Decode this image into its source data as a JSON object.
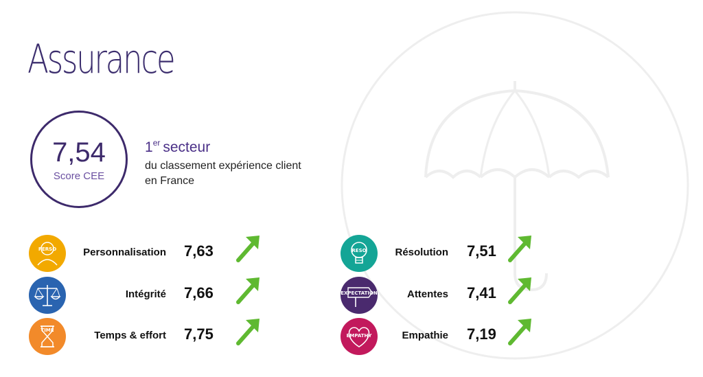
{
  "page": {
    "title": "Assurance"
  },
  "score": {
    "value": "7,54",
    "label": "Score CEE"
  },
  "ranking": {
    "number": "1",
    "superscript": "er",
    "word": "secteur",
    "description": "du classement expérience client en France"
  },
  "metrics": [
    {
      "label": "Personnalisation",
      "value": "7,63",
      "icon": "personalisation-icon",
      "icon_text": "PERSO",
      "color": "#f2a900",
      "trend": "up"
    },
    {
      "label": "Intégrité",
      "value": "7,66",
      "icon": "scales-icon",
      "icon_text": "",
      "color": "#2a64b0",
      "trend": "up"
    },
    {
      "label": "Temps & effort",
      "value": "7,75",
      "icon": "hourglass-icon",
      "icon_text": "TIME",
      "color": "#f28a2a",
      "trend": "up"
    },
    {
      "label": "Résolution",
      "value": "7,51",
      "icon": "lightbulb-icon",
      "icon_text": "RESO",
      "color": "#14a596",
      "trend": "up"
    },
    {
      "label": "Attentes",
      "value": "7,41",
      "icon": "signpost-icon",
      "icon_text": "EXPECTATION",
      "color": "#4a2a6e",
      "trend": "up"
    },
    {
      "label": "Empathie",
      "value": "7,19",
      "icon": "heart-icon",
      "icon_text": "EMPATHY",
      "color": "#c2195c",
      "trend": "up"
    }
  ],
  "colors": {
    "brand": "#3d2a6b",
    "arrow": "#5fb931",
    "watermark": "#eeeeee"
  },
  "decor": {
    "background_icon": "umbrella-icon"
  }
}
